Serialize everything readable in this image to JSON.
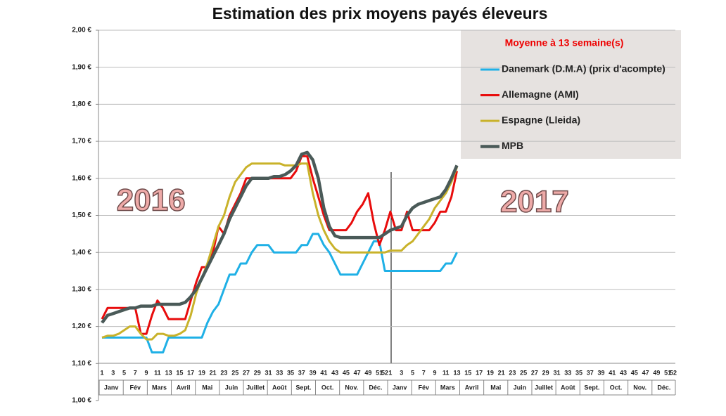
{
  "chart_data": {
    "type": "line",
    "title": "Estimation des prix moyens payés éleveurs",
    "legend_title": "Moyenne à 13 semaine(s)",
    "annotations": [
      "2016",
      "2017"
    ],
    "months": [
      "Janv",
      "Fév",
      "Mars",
      "Avril",
      "Mai",
      "Juin",
      "Juillet",
      "Août",
      "Sept.",
      "Oct.",
      "Nov.",
      "Déc."
    ],
    "categories": [
      "1",
      null,
      "3",
      null,
      "5",
      null,
      "7",
      null,
      "9",
      null,
      "11",
      null,
      "13",
      null,
      "15",
      null,
      "17",
      null,
      "19",
      null,
      "21",
      null,
      "23",
      null,
      "25",
      null,
      "27",
      null,
      "29",
      null,
      "31",
      null,
      "33",
      null,
      "35",
      null,
      "37",
      null,
      "39",
      null,
      "41",
      null,
      "43",
      null,
      "45",
      null,
      "47",
      null,
      "49",
      null,
      "51",
      "52",
      "1",
      null,
      "3",
      null,
      "5",
      null,
      "7",
      null,
      "9",
      null,
      "11",
      null,
      "13",
      null,
      "15",
      null,
      "17",
      null,
      "19",
      null,
      "21",
      null,
      "23",
      null,
      "25",
      null,
      "27",
      null,
      "29",
      null,
      "31",
      null,
      "33",
      null,
      "35",
      null,
      "37",
      null,
      "39",
      null,
      "41",
      null,
      "43",
      null,
      "45",
      null,
      "47",
      null,
      "49",
      null,
      "51",
      "52"
    ],
    "ylim": [
      1.0,
      2.0
    ],
    "yticks": [
      {
        "value": 1.0,
        "label": "1,00 €"
      },
      {
        "value": 1.1,
        "label": "1,10 €"
      },
      {
        "value": 1.2,
        "label": "1,20 €"
      },
      {
        "value": 1.3,
        "label": "1,30 €"
      },
      {
        "value": 1.4,
        "label": "1,40 €"
      },
      {
        "value": 1.5,
        "label": "1,50 €"
      },
      {
        "value": 1.6,
        "label": "1,60 €"
      },
      {
        "value": 1.7,
        "label": "1,70 €"
      },
      {
        "value": 1.8,
        "label": "1,80 €"
      },
      {
        "value": 1.9,
        "label": "1,90 €"
      },
      {
        "value": 2.0,
        "label": "2,00 €"
      }
    ],
    "grid": true,
    "series": [
      {
        "name": "Danemark (D.M.A) (prix d'acompte)",
        "color": "#1fb0e6",
        "width": 3,
        "values": [
          1.17,
          1.17,
          1.17,
          1.17,
          1.17,
          1.17,
          1.17,
          1.17,
          1.17,
          1.13,
          1.13,
          1.13,
          1.17,
          1.17,
          1.17,
          1.17,
          1.17,
          1.17,
          1.17,
          1.21,
          1.24,
          1.26,
          1.3,
          1.34,
          1.34,
          1.37,
          1.37,
          1.4,
          1.42,
          1.42,
          1.42,
          1.4,
          1.4,
          1.4,
          1.4,
          1.4,
          1.42,
          1.42,
          1.45,
          1.45,
          1.42,
          1.4,
          1.37,
          1.34,
          1.34,
          1.34,
          1.34,
          1.37,
          1.4,
          1.43,
          1.43,
          1.35,
          1.35,
          1.35,
          1.35,
          1.35,
          1.35,
          1.35,
          1.35,
          1.35,
          1.35,
          1.35,
          1.37,
          1.37,
          1.4,
          null,
          null,
          null,
          null,
          null,
          null,
          null,
          null,
          null,
          null,
          null,
          null,
          null,
          null,
          null,
          null,
          null,
          null,
          null,
          null,
          null,
          null,
          null,
          null,
          null,
          null,
          null,
          null,
          null,
          null,
          null,
          null,
          null,
          null,
          null,
          null,
          null,
          null,
          null
        ]
      },
      {
        "name": "Allemagne (AMI)",
        "color": "#e80c0c",
        "width": 3,
        "values": [
          1.22,
          1.25,
          1.25,
          1.25,
          1.25,
          1.25,
          1.25,
          1.18,
          1.18,
          1.23,
          1.27,
          1.25,
          1.22,
          1.22,
          1.22,
          1.22,
          1.27,
          1.32,
          1.36,
          1.36,
          1.4,
          1.47,
          1.45,
          1.5,
          1.53,
          1.56,
          1.6,
          1.6,
          1.6,
          1.6,
          1.6,
          1.6,
          1.6,
          1.6,
          1.6,
          1.62,
          1.66,
          1.66,
          1.6,
          1.55,
          1.5,
          1.46,
          1.46,
          1.46,
          1.46,
          1.48,
          1.51,
          1.53,
          1.56,
          1.48,
          1.42,
          1.46,
          1.51,
          1.46,
          1.46,
          1.51,
          1.46,
          1.46,
          1.46,
          1.46,
          1.48,
          1.51,
          1.51,
          1.55,
          1.62,
          null,
          null,
          null,
          null,
          null,
          null,
          null,
          null,
          null,
          null,
          null,
          null,
          null,
          null,
          null,
          null,
          null,
          null,
          null,
          null,
          null,
          null,
          null,
          null,
          null,
          null,
          null,
          null,
          null,
          null,
          null,
          null,
          null,
          null,
          null,
          null,
          null,
          null,
          null
        ]
      },
      {
        "name": "Espagne (Lleida)",
        "color": "#c9b22a",
        "width": 3,
        "values": [
          1.17,
          1.175,
          1.175,
          1.18,
          1.19,
          1.2,
          1.2,
          1.18,
          1.165,
          1.165,
          1.18,
          1.18,
          1.175,
          1.175,
          1.18,
          1.19,
          1.23,
          1.29,
          1.33,
          1.37,
          1.42,
          1.47,
          1.5,
          1.55,
          1.59,
          1.61,
          1.63,
          1.64,
          1.64,
          1.64,
          1.64,
          1.64,
          1.64,
          1.635,
          1.635,
          1.635,
          1.64,
          1.64,
          1.56,
          1.5,
          1.46,
          1.43,
          1.41,
          1.4,
          1.4,
          1.4,
          1.4,
          1.4,
          1.4,
          1.4,
          1.4,
          1.4,
          1.405,
          1.405,
          1.405,
          1.42,
          1.43,
          1.45,
          1.47,
          1.49,
          1.52,
          1.54,
          1.56,
          1.59,
          1.63,
          null,
          null,
          null,
          null,
          null,
          null,
          null,
          null,
          null,
          null,
          null,
          null,
          null,
          null,
          null,
          null,
          null,
          null,
          null,
          null,
          null,
          null,
          null,
          null,
          null,
          null,
          null,
          null,
          null,
          null,
          null,
          null,
          null,
          null,
          null,
          null,
          null,
          null,
          null
        ]
      },
      {
        "name": "MPB",
        "color": "#4a5a58",
        "width": 4.5,
        "values": [
          1.21,
          1.23,
          1.235,
          1.24,
          1.245,
          1.25,
          1.25,
          1.255,
          1.255,
          1.255,
          1.26,
          1.26,
          1.26,
          1.26,
          1.26,
          1.265,
          1.28,
          1.3,
          1.33,
          1.36,
          1.39,
          1.42,
          1.45,
          1.49,
          1.52,
          1.55,
          1.58,
          1.6,
          1.6,
          1.6,
          1.6,
          1.605,
          1.605,
          1.61,
          1.62,
          1.635,
          1.665,
          1.67,
          1.65,
          1.6,
          1.52,
          1.47,
          1.445,
          1.44,
          1.44,
          1.44,
          1.44,
          1.44,
          1.44,
          1.44,
          1.44,
          1.45,
          1.46,
          1.465,
          1.47,
          1.5,
          1.52,
          1.53,
          1.535,
          1.54,
          1.545,
          1.55,
          1.57,
          1.6,
          1.635,
          null,
          null,
          null,
          null,
          null,
          null,
          null,
          null,
          null,
          null,
          null,
          null,
          null,
          null,
          null,
          null,
          null,
          null,
          null,
          null,
          null,
          null,
          null,
          null,
          null,
          null,
          null,
          null,
          null,
          null,
          null,
          null,
          null,
          null,
          null,
          null,
          null,
          null,
          null
        ]
      }
    ]
  }
}
